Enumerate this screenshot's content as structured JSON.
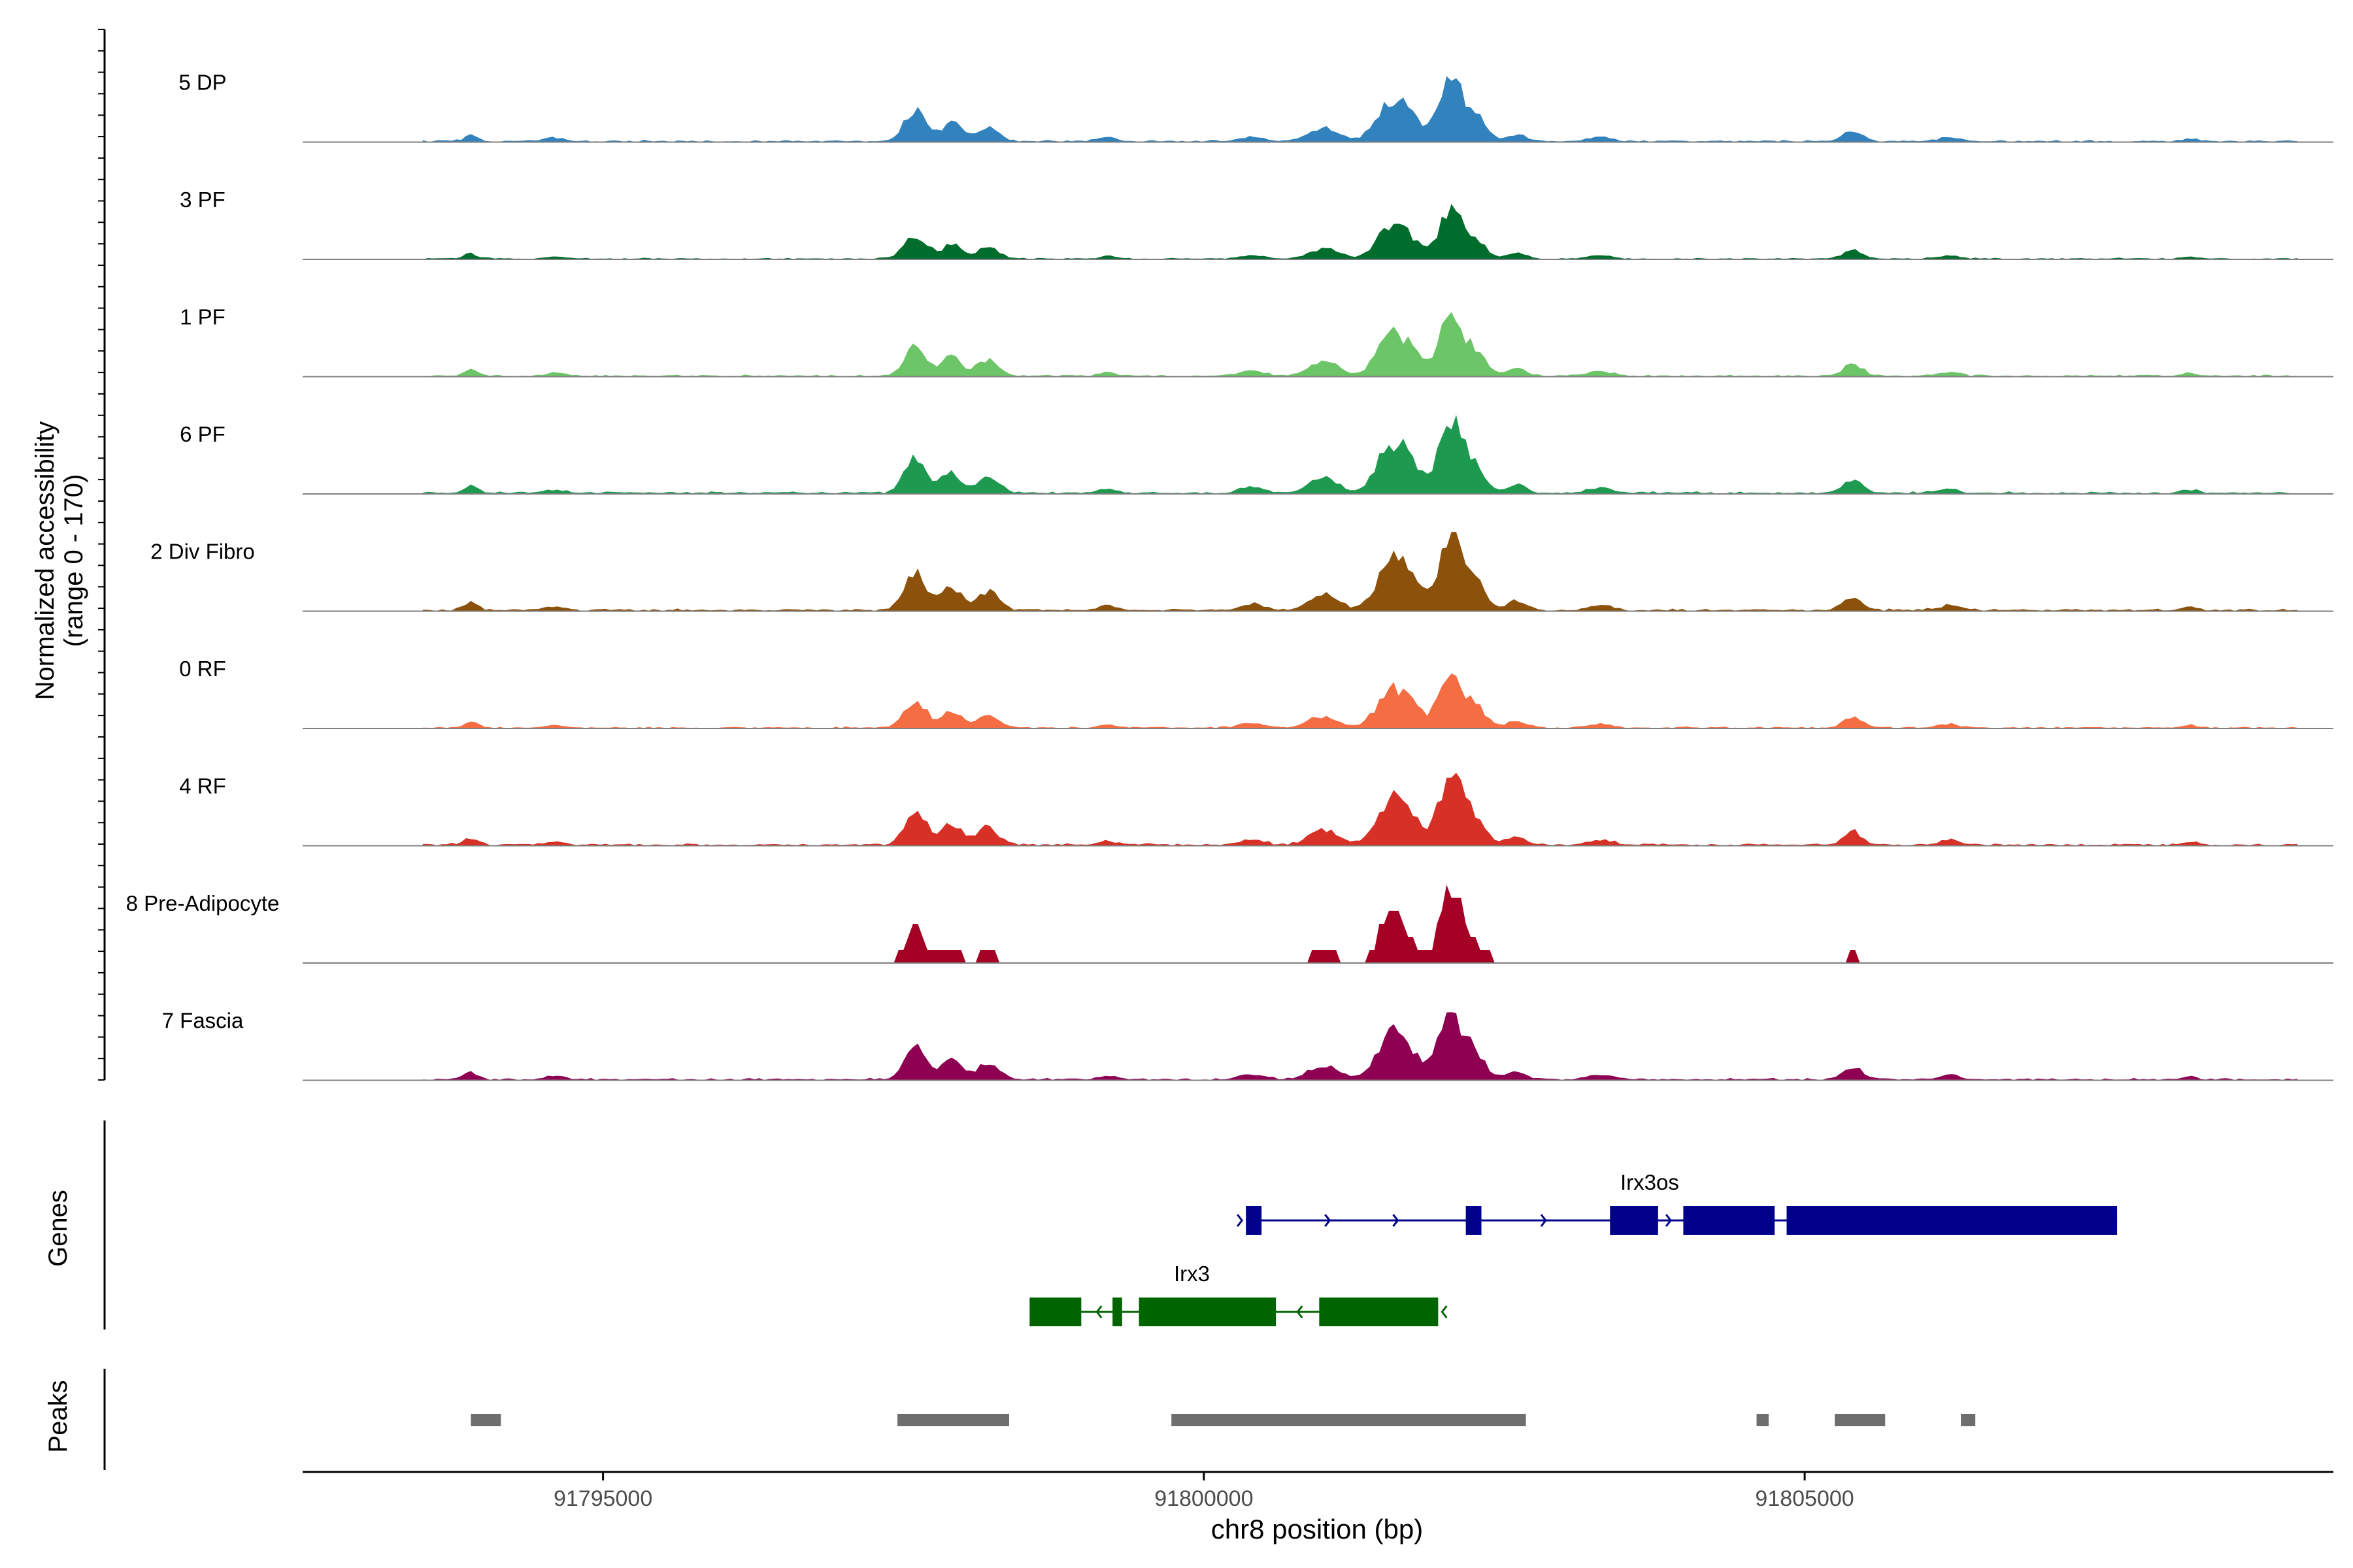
{
  "chart_data": {
    "type": "area",
    "title": "",
    "ylabel": "Normalized accessibility",
    "ylabel_range": "(range 0 - 170)",
    "xlabel": "chr8 position (bp)",
    "xlim": [
      91792500,
      91809400
    ],
    "ylim": [
      0,
      170
    ],
    "x_ticks": [
      91795000,
      91800000,
      91805000
    ],
    "x_tick_labels": [
      "91795000",
      "91800000",
      "91805000"
    ],
    "tracks": [
      {
        "name": "5 DP",
        "color": "#3182bd",
        "ymax": 0.65
      },
      {
        "name": "3 PF",
        "color": "#006d2c",
        "ymax": 0.5
      },
      {
        "name": "1 PF",
        "color": "#6cc567",
        "ymax": 0.64
      },
      {
        "name": "6 PF",
        "color": "#1d9a50",
        "ymax": 0.75
      },
      {
        "name": "2 Div Fibro",
        "color": "#8c510a",
        "ymax": 0.78
      },
      {
        "name": "0 RF",
        "color": "#f46d43",
        "ymax": 0.58
      },
      {
        "name": "4 RF",
        "color": "#d73027",
        "ymax": 0.73
      },
      {
        "name": "8 Pre-Adipocyte",
        "color": "#a50026",
        "ymax": 0.8,
        "blocky": true
      },
      {
        "name": "7 Fascia",
        "color": "#8e0152",
        "ymax": 0.7
      }
    ],
    "peak_profile": [
      {
        "pos": 91793900,
        "w": 60,
        "h": 0.1
      },
      {
        "pos": 91794600,
        "w": 80,
        "h": 0.05
      },
      {
        "pos": 91797600,
        "w": 90,
        "h": 0.5
      },
      {
        "pos": 91797900,
        "w": 80,
        "h": 0.3
      },
      {
        "pos": 91798200,
        "w": 90,
        "h": 0.25
      },
      {
        "pos": 91799200,
        "w": 70,
        "h": 0.06
      },
      {
        "pos": 91800400,
        "w": 100,
        "h": 0.08
      },
      {
        "pos": 91801000,
        "w": 120,
        "h": 0.22
      },
      {
        "pos": 91801500,
        "w": 100,
        "h": 0.3
      },
      {
        "pos": 91801650,
        "w": 130,
        "h": 0.55
      },
      {
        "pos": 91802050,
        "w": 90,
        "h": 1.0
      },
      {
        "pos": 91802250,
        "w": 90,
        "h": 0.4
      },
      {
        "pos": 91802600,
        "w": 80,
        "h": 0.12
      },
      {
        "pos": 91803300,
        "w": 100,
        "h": 0.07
      },
      {
        "pos": 91805400,
        "w": 80,
        "h": 0.18
      },
      {
        "pos": 91806200,
        "w": 80,
        "h": 0.07
      },
      {
        "pos": 91808200,
        "w": 60,
        "h": 0.05
      }
    ],
    "genes": [
      {
        "name": "Irx3os",
        "strand": "+",
        "color": "#00008b",
        "start": 91800350,
        "end": 91807600,
        "exons": [
          [
            91800350,
            91800480
          ],
          [
            91802180,
            91802310
          ],
          [
            91803380,
            91803780
          ],
          [
            91803990,
            91804750
          ],
          [
            91804850,
            91807600
          ]
        ]
      },
      {
        "name": "Irx3",
        "strand": "-",
        "color": "#006400",
        "start": 91798550,
        "end": 91801950,
        "exons": [
          [
            91798550,
            91798980
          ],
          [
            91799240,
            91799320
          ],
          [
            91799460,
            91800600
          ],
          [
            91800960,
            91801950
          ]
        ]
      }
    ],
    "peaks": [
      [
        91793900,
        91794150
      ],
      [
        91797450,
        91798380
      ],
      [
        91799730,
        91802680
      ],
      [
        91804600,
        91804700
      ],
      [
        91805250,
        91805670
      ],
      [
        91806300,
        91806420
      ]
    ]
  },
  "panels": {
    "genes_label": "Genes",
    "peaks_label": "Peaks"
  },
  "colors": {
    "axis": "#000000",
    "baseline": "#7f7f7f",
    "peak_bar": "#6e6e6e"
  }
}
